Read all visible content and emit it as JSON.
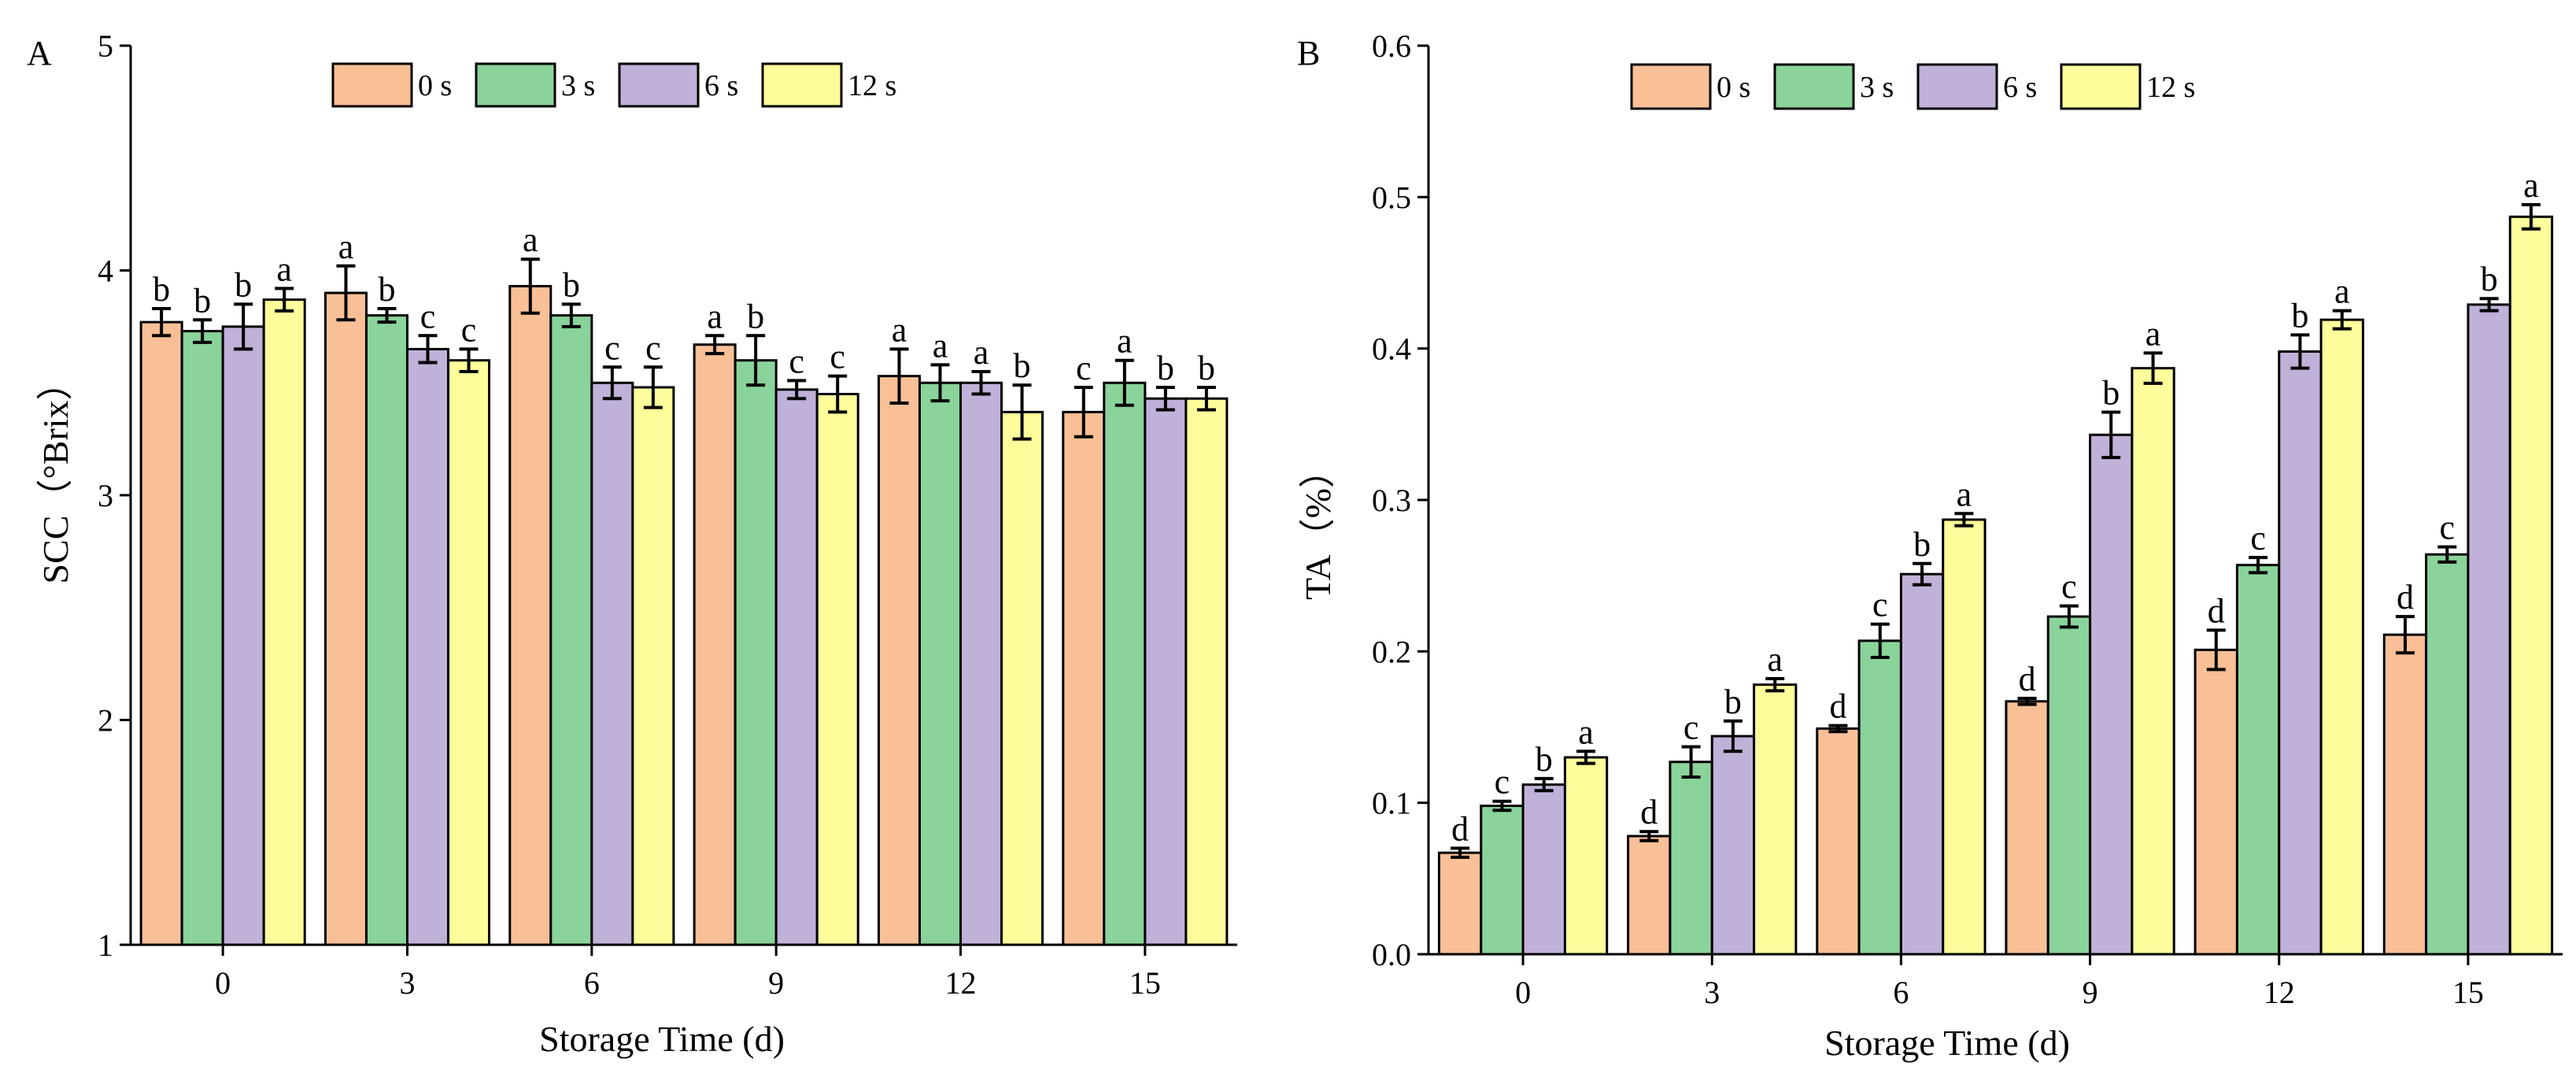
{
  "panels": [
    {
      "letter": "A",
      "ylabel": "SCC（°Brix）",
      "xlabel": "Storage Time (d)",
      "ytick_labels": [
        "1",
        "2",
        "3",
        "4",
        "5"
      ]
    },
    {
      "letter": "B",
      "ylabel": "TA（%）",
      "xlabel": "Storage Time (d)",
      "ytick_labels": [
        "0.0",
        "0.1",
        "0.2",
        "0.3",
        "0.4",
        "0.5",
        "0.6"
      ]
    }
  ],
  "chart_data": [
    {
      "type": "bar",
      "panel": "A",
      "title": "",
      "xlabel": "Storage Time (d)",
      "ylabel": "SCC（°Brix）",
      "ylim": [
        1,
        5
      ],
      "yticks": [
        1,
        2,
        3,
        4,
        5
      ],
      "categories": [
        "0",
        "3",
        "6",
        "9",
        "12",
        "15"
      ],
      "series": [
        {
          "name": "0 s",
          "color": "#f9bf96",
          "values": [
            3.77,
            3.9,
            3.93,
            3.67,
            3.53,
            3.37
          ],
          "errors": [
            0.06,
            0.12,
            0.12,
            0.04,
            0.12,
            0.11
          ],
          "letters": [
            "b",
            "a",
            "a",
            "a",
            "a",
            "c"
          ]
        },
        {
          "name": "3 s",
          "color": "#8ad39a",
          "values": [
            3.73,
            3.8,
            3.8,
            3.6,
            3.5,
            3.5
          ],
          "errors": [
            0.05,
            0.03,
            0.05,
            0.11,
            0.08,
            0.1
          ],
          "letters": [
            "b",
            "b",
            "b",
            "b",
            "a",
            "a"
          ]
        },
        {
          "name": "6 s",
          "color": "#c0b1d8",
          "values": [
            3.75,
            3.65,
            3.5,
            3.47,
            3.5,
            3.43
          ],
          "errors": [
            0.1,
            0.06,
            0.07,
            0.04,
            0.05,
            0.05
          ],
          "letters": [
            "b",
            "c",
            "c",
            "c",
            "a",
            "b"
          ]
        },
        {
          "name": "12 s",
          "color": "#fdfe9b",
          "values": [
            3.87,
            3.6,
            3.48,
            3.45,
            3.37,
            3.43
          ],
          "errors": [
            0.05,
            0.05,
            0.09,
            0.08,
            0.12,
            0.05
          ],
          "letters": [
            "a",
            "c",
            "c",
            "c",
            "b",
            "b"
          ]
        }
      ],
      "legend": {
        "position": "top",
        "entries": [
          "0 s",
          "3 s",
          "6 s",
          "12 s"
        ]
      },
      "grid": false
    },
    {
      "type": "bar",
      "panel": "B",
      "title": "",
      "xlabel": "Storage Time (d)",
      "ylabel": "TA（%）",
      "ylim": [
        0,
        0.6
      ],
      "yticks": [
        0,
        0.1,
        0.2,
        0.3,
        0.4,
        0.5,
        0.6
      ],
      "categories": [
        "0",
        "3",
        "6",
        "9",
        "12",
        "15"
      ],
      "series": [
        {
          "name": "0 s",
          "color": "#f9bf96",
          "values": [
            0.067,
            0.078,
            0.149,
            0.167,
            0.201,
            0.211
          ],
          "errors": [
            0.003,
            0.003,
            0.002,
            0.002,
            0.013,
            0.012
          ],
          "letters": [
            "d",
            "d",
            "d",
            "d",
            "d",
            "d"
          ]
        },
        {
          "name": "3 s",
          "color": "#8ad39a",
          "values": [
            0.098,
            0.127,
            0.207,
            0.223,
            0.257,
            0.264
          ],
          "errors": [
            0.003,
            0.01,
            0.011,
            0.007,
            0.005,
            0.005
          ],
          "letters": [
            "c",
            "c",
            "c",
            "c",
            "c",
            "c"
          ]
        },
        {
          "name": "6 s",
          "color": "#c0b1d8",
          "values": [
            0.112,
            0.144,
            0.251,
            0.343,
            0.398,
            0.429
          ],
          "errors": [
            0.004,
            0.01,
            0.007,
            0.015,
            0.011,
            0.004
          ],
          "letters": [
            "b",
            "b",
            "b",
            "b",
            "b",
            "b"
          ]
        },
        {
          "name": "12 s",
          "color": "#fdfe9b",
          "values": [
            0.13,
            0.178,
            0.287,
            0.387,
            0.419,
            0.487
          ],
          "errors": [
            0.004,
            0.004,
            0.004,
            0.01,
            0.006,
            0.008
          ],
          "letters": [
            "a",
            "a",
            "a",
            "a",
            "a",
            "a"
          ]
        }
      ],
      "legend": {
        "position": "top",
        "entries": [
          "0 s",
          "3 s",
          "6 s",
          "12 s"
        ]
      },
      "grid": false
    }
  ]
}
